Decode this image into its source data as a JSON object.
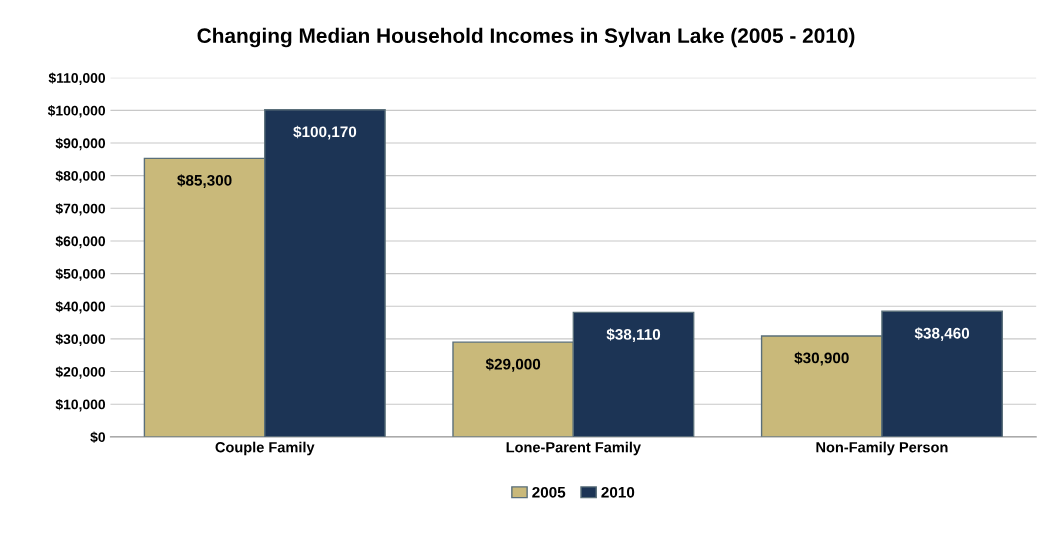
{
  "chart_data": {
    "type": "bar",
    "title": "Changing Median Household Incomes in Sylvan Lake (2005 - 2010)",
    "categories": [
      "Couple Family",
      "Lone-Parent Family",
      "Non-Family Person"
    ],
    "series": [
      {
        "name": "2005",
        "color": "#c9b97a",
        "values": [
          85300,
          29000,
          30900
        ],
        "value_labels": [
          "$85,300",
          "$29,000",
          "$30,900"
        ]
      },
      {
        "name": "2010",
        "color": "#1c3455",
        "values": [
          100170,
          38110,
          38460
        ],
        "value_labels": [
          "$100,170",
          "$38,110",
          "$38,460"
        ]
      }
    ],
    "ylim": [
      0,
      110000
    ],
    "yticks": [
      {
        "value": 0,
        "label": "$0"
      },
      {
        "value": 10000,
        "label": "$10,000"
      },
      {
        "value": 20000,
        "label": "$20,000"
      },
      {
        "value": 30000,
        "label": "$30,000"
      },
      {
        "value": 40000,
        "label": "$40,000"
      },
      {
        "value": 50000,
        "label": "$50,000"
      },
      {
        "value": 60000,
        "label": "$60,000"
      },
      {
        "value": 70000,
        "label": "$70,000"
      },
      {
        "value": 80000,
        "label": "$80,000"
      },
      {
        "value": 90000,
        "label": "$90,000"
      },
      {
        "value": 100000,
        "label": "$100,000"
      },
      {
        "value": 110000,
        "label": "$110,000"
      }
    ],
    "grid": "y",
    "legend": "bottom"
  }
}
